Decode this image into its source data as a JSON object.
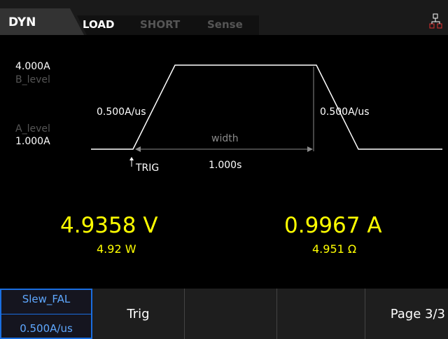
{
  "status_bar": {
    "mode": "DYN",
    "tabs": [
      "LOAD",
      "SHORT",
      "Sense"
    ]
  },
  "waveform": {
    "high_value": "4.000A",
    "high_label": "B_level",
    "low_label": "A_level",
    "low_value": "1.000A",
    "rise_slew": "0.500A/us",
    "fall_slew": "0.500A/us",
    "width_label": "width",
    "width_value": "1.000s",
    "trigger": "TRIG"
  },
  "readings": {
    "voltage": "4.9358 V",
    "power": "4.92 W",
    "current": "0.9967 A",
    "resistance": "4.951 Ω"
  },
  "softkeys": [
    {
      "label": "Slew_FAL",
      "value": "0.500A/us"
    },
    {
      "label": "Trig"
    },
    {
      "label": ""
    },
    {
      "label": ""
    },
    {
      "label": "Page 3/3"
    }
  ]
}
